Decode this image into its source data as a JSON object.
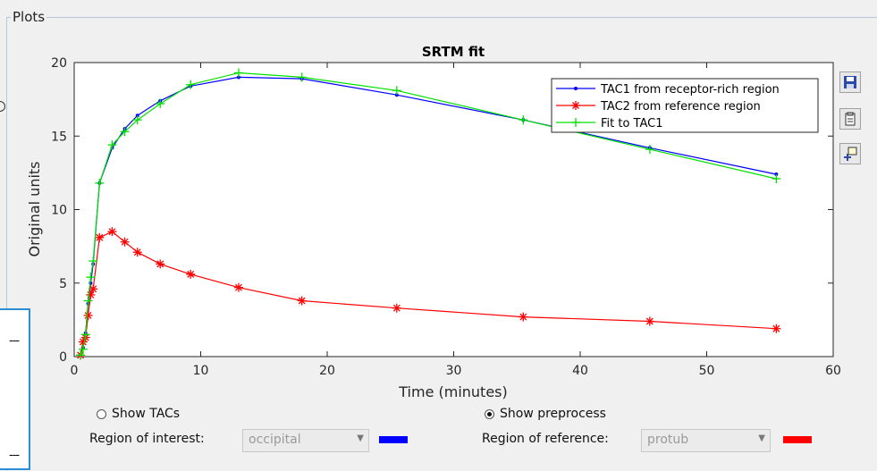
{
  "panel": {
    "title": "Plots"
  },
  "left_box": {
    "line1": "---",
    "line2": "---"
  },
  "toolbar": {
    "save_icon": "save-icon",
    "copy_icon": "clipboard-icon",
    "datatip_icon": "data-cursor-icon"
  },
  "controls": {
    "show_tacs_label": "Show TACs",
    "show_tacs_selected": false,
    "show_preprocess_label": "Show preprocess",
    "show_preprocess_selected": true,
    "roi_label": "Region of interest:",
    "roi_value": "occipital",
    "roi_color": "#0000ff",
    "ref_label": "Region of reference:",
    "ref_value": "protub",
    "ref_color": "#ff0000"
  },
  "chart_data": {
    "type": "line",
    "title": "SRTM fit",
    "xlabel": "Time (minutes)",
    "ylabel": "Original units",
    "xlim": [
      0,
      60
    ],
    "ylim": [
      0,
      20
    ],
    "xticks": [
      0,
      10,
      20,
      30,
      40,
      50,
      60
    ],
    "yticks": [
      0,
      5,
      10,
      15,
      20
    ],
    "grid": false,
    "legend_position": "top-right",
    "series": [
      {
        "name": "TAC1 from receptor-rich region",
        "color": "#0000ff",
        "marker": "dot",
        "x": [
          0.5,
          0.7,
          0.9,
          1.1,
          1.3,
          1.5,
          2,
          3,
          4,
          5,
          6.8,
          9.2,
          13,
          18,
          25.5,
          35.5,
          45.5,
          55.5
        ],
        "y": [
          0.1,
          0.6,
          1.6,
          3.6,
          5.0,
          6.3,
          11.8,
          14.2,
          15.5,
          16.4,
          17.4,
          18.4,
          19.0,
          18.9,
          17.8,
          16.1,
          14.2,
          12.4
        ]
      },
      {
        "name": "TAC2 from reference region",
        "color": "#ff0000",
        "marker": "star",
        "x": [
          0.5,
          0.7,
          0.9,
          1.1,
          1.3,
          1.5,
          2,
          3,
          4,
          5,
          6.8,
          9.2,
          13,
          18,
          25.5,
          35.5,
          45.5,
          55.5
        ],
        "y": [
          0.1,
          1.0,
          1.3,
          2.8,
          4.2,
          4.6,
          8.1,
          8.5,
          7.8,
          7.1,
          6.3,
          5.6,
          4.7,
          3.8,
          3.3,
          2.7,
          2.4,
          1.9
        ]
      },
      {
        "name": "Fit to TAC1",
        "color": "#00e000",
        "marker": "plus",
        "x": [
          0.5,
          0.7,
          0.9,
          1.1,
          1.3,
          1.5,
          2,
          3,
          4,
          5,
          6.8,
          9.2,
          13,
          18,
          25.5,
          35.5,
          45.5,
          55.5
        ],
        "y": [
          0.1,
          0.5,
          1.5,
          3.8,
          5.4,
          6.5,
          11.8,
          14.4,
          15.3,
          16.1,
          17.2,
          18.5,
          19.3,
          19.0,
          18.1,
          16.1,
          14.1,
          12.1
        ]
      }
    ]
  }
}
